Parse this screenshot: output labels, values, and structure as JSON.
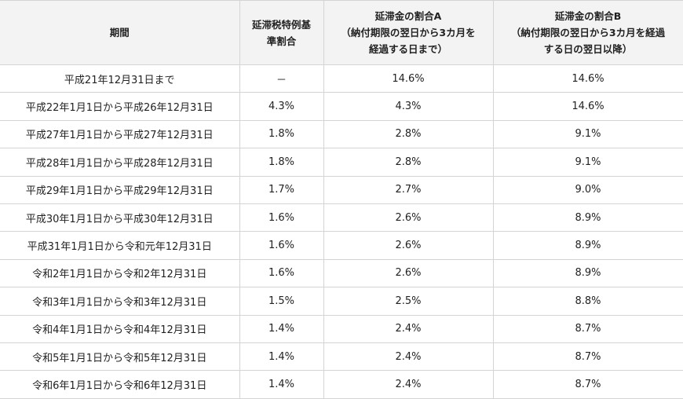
{
  "table": {
    "header": [
      [
        "期間"
      ],
      [
        "延滞税特例基",
        "準割合"
      ],
      [
        "延滞金の割合A",
        "（納付期限の翌日から3カ月を",
        "経過する日まで）"
      ],
      [
        "延滞金の割合B",
        "（納付期限の翌日から3カ月を経過",
        "する日の翌日以降）"
      ]
    ],
    "rows": [
      [
        "平成21年12月31日まで",
        "－",
        "14.6%",
        "14.6%"
      ],
      [
        "平成22年1月1日から平成26年12月31日",
        "4.3%",
        "4.3%",
        "14.6%"
      ],
      [
        "平成27年1月1日から平成27年12月31日",
        "1.8%",
        "2.8%",
        "9.1%"
      ],
      [
        "平成28年1月1日から平成28年12月31日",
        "1.8%",
        "2.8%",
        "9.1%"
      ],
      [
        "平成29年1月1日から平成29年12月31日",
        "1.7%",
        "2.7%",
        "9.0%"
      ],
      [
        "平成30年1月1日から平成30年12月31日",
        "1.6%",
        "2.6%",
        "8.9%"
      ],
      [
        "平成31年1月1日から令和元年12月31日",
        "1.6%",
        "2.6%",
        "8.9%"
      ],
      [
        "令和2年1月1日から令和2年12月31日",
        "1.6%",
        "2.6%",
        "8.9%"
      ],
      [
        "令和3年1月1日から令和3年12月31日",
        "1.5%",
        "2.5%",
        "8.8%"
      ],
      [
        "令和4年1月1日から令和4年12月31日",
        "1.4%",
        "2.4%",
        "8.7%"
      ],
      [
        "令和5年1月1日から令和5年12月31日",
        "1.4%",
        "2.4%",
        "8.7%"
      ],
      [
        "令和6年1月1日から令和6年12月31日",
        "1.4%",
        "2.4%",
        "8.7%"
      ]
    ]
  }
}
